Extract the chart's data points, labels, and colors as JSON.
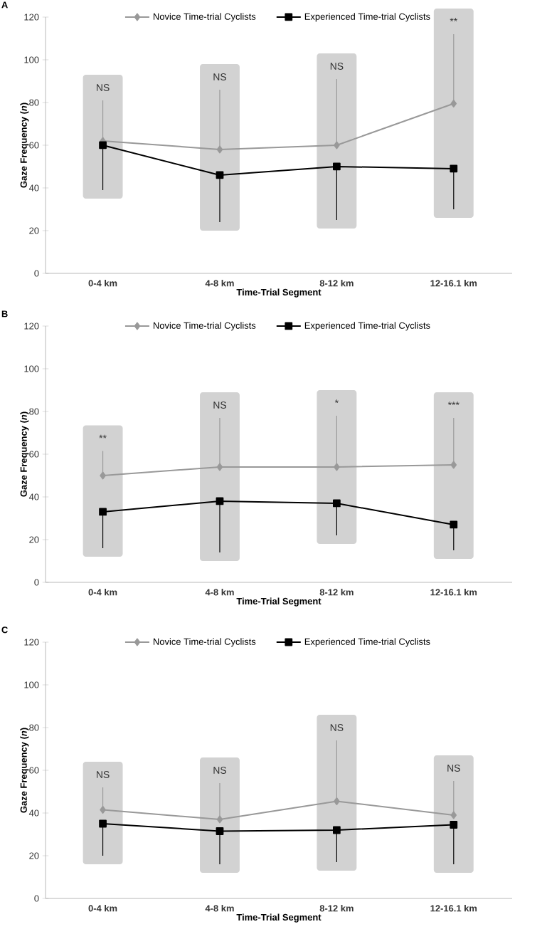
{
  "chart_data": [
    {
      "type": "line",
      "title": "A",
      "xlabel": "Time-Trial Segment",
      "ylabel": "Gaze Frequency (*n*)",
      "categories": [
        "0-4 km",
        "4-8 km",
        "8-12 km",
        "12-16.1 km"
      ],
      "ylim": [
        0,
        120
      ],
      "yticks": [
        0,
        20,
        40,
        60,
        80,
        100,
        120
      ],
      "legend": "top",
      "series": [
        {
          "name": "Novice Time-trial Cyclists",
          "color": "#999999",
          "marker": "diamond",
          "values": [
            62,
            58,
            60,
            79.5
          ],
          "errors": [
            [
              62,
              81
            ],
            [
              58,
              86
            ],
            [
              60,
              91
            ],
            [
              79.5,
              112
            ]
          ]
        },
        {
          "name": "Experienced Time-trial Cyclists",
          "color": "#000000",
          "marker": "square",
          "values": [
            60,
            46,
            50,
            49
          ],
          "errors": [
            [
              39,
              60
            ],
            [
              24,
              46
            ],
            [
              25,
              50
            ],
            [
              30,
              49
            ]
          ]
        }
      ],
      "annotations": [
        "NS",
        "NS",
        "NS",
        "**"
      ]
    },
    {
      "type": "line",
      "title": "B",
      "xlabel": "Time-Trial Segment",
      "ylabel": "Gaze Frequency (*n*)",
      "categories": [
        "0-4 km",
        "4-8 km",
        "8-12 km",
        "12-16.1 km"
      ],
      "ylim": [
        0,
        120
      ],
      "yticks": [
        0,
        20,
        40,
        60,
        80,
        100,
        120
      ],
      "legend": "top",
      "series": [
        {
          "name": "Novice Time-trial Cyclists",
          "color": "#999999",
          "marker": "diamond",
          "values": [
            50,
            54,
            54,
            55
          ],
          "errors": [
            [
              50,
              61.5
            ],
            [
              54,
              77
            ],
            [
              54,
              78
            ],
            [
              55,
              77
            ]
          ]
        },
        {
          "name": "Experienced Time-trial Cyclists",
          "color": "#000000",
          "marker": "square",
          "values": [
            33,
            38,
            37,
            27
          ],
          "errors": [
            [
              16,
              33
            ],
            [
              14,
              38
            ],
            [
              22,
              37
            ],
            [
              15,
              27
            ]
          ]
        }
      ],
      "annotations": [
        "**",
        "NS",
        "*",
        "***"
      ]
    },
    {
      "type": "line",
      "title": "C",
      "xlabel": "Time-Trial Segment",
      "ylabel": "Gaze Frequency (*n*)",
      "categories": [
        "0-4 km",
        "4-8 km",
        "8-12 km",
        "12-16.1 km"
      ],
      "ylim": [
        0,
        120
      ],
      "yticks": [
        0,
        20,
        40,
        60,
        80,
        100,
        120
      ],
      "legend": "top",
      "series": [
        {
          "name": "Novice Time-trial Cyclists",
          "color": "#999999",
          "marker": "diamond",
          "values": [
            41.5,
            37,
            45.5,
            39
          ],
          "errors": [
            [
              41.5,
              52
            ],
            [
              37,
              54
            ],
            [
              45.5,
              74
            ],
            [
              39,
              55
            ]
          ]
        },
        {
          "name": "Experienced Time-trial Cyclists",
          "color": "#000000",
          "marker": "square",
          "values": [
            35,
            31.5,
            32,
            34.5
          ],
          "errors": [
            [
              20,
              35
            ],
            [
              16,
              31.5
            ],
            [
              17,
              32
            ],
            [
              16,
              34.5
            ]
          ]
        }
      ],
      "annotations": [
        "NS",
        "NS",
        "NS",
        "NS"
      ]
    }
  ]
}
